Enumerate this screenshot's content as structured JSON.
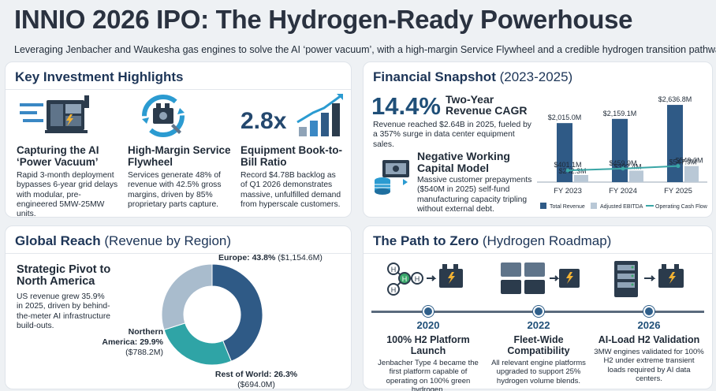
{
  "header": {
    "title": "INNIO 2026 IPO: The Hydrogen-Ready Powerhouse",
    "subtitle": "Leveraging Jenbacher and Waukesha gas engines to solve the AI ‘power vacuum’, with a high-margin Service Flywheel and a credible hydrogen transition pathway."
  },
  "highlights": {
    "title": "Key Investment Highlights",
    "items": [
      {
        "icon": "generator-icon",
        "heading": "Capturing the AI ‘Power Vacuum’",
        "body": "Rapid 3-month deployment bypasses 6-year grid delays with modular, pre-engineered 5MW-25MW units."
      },
      {
        "icon": "engine-cycle-icon",
        "heading": "High-Margin Service Flywheel",
        "body": "Services generate 48% of revenue with 42.5% gross margins, driven by 85% proprietary parts capture."
      },
      {
        "icon": "growth-bars-icon",
        "big": "2.8x",
        "heading": "Equipment Book-to-Bill Ratio",
        "body": "Record $4.78B backlog as of Q1 2026 demonstrates massive, unfulfilled demand from hyperscale customers."
      }
    ]
  },
  "financial": {
    "title": "Financial Snapshot",
    "title_suffix": "(2023-2025)",
    "cagr_value": "14.4%",
    "cagr_label": "Two-Year Revenue CAGR",
    "cagr_desc": "Revenue reached $2.64B in 2025, fueled by a 357% surge in data center equipment sales.",
    "nwc_heading": "Negative Working Capital Model",
    "nwc_body": "Massive customer prepayments ($540M in 2025) self-fund manufacturing capacity tripling without external debt."
  },
  "chart_data": {
    "type": "bar",
    "categories": [
      "FY 2023",
      "FY 2024",
      "FY 2025"
    ],
    "series": [
      {
        "name": "Total Revenue",
        "type": "bar",
        "values": [
          2015.0,
          2159.1,
          2636.8
        ],
        "labels": [
          "$2,015.0M",
          "$2,159.1M",
          "$2,636.8M"
        ],
        "color": "#2f5a86"
      },
      {
        "name": "Adjusted EBITDA",
        "type": "bar",
        "values": [
          242.3,
          392.4,
          547.9
        ],
        "labels": [
          "$242.3M",
          "$392.4M",
          "$547.9M"
        ],
        "color": "#b9c8d6"
      },
      {
        "name": "Operating Cash Flow",
        "type": "line",
        "values": [
          401.1,
          459.9,
          549.0
        ],
        "labels": [
          "$401.1M",
          "$459.9M",
          "$549.0M"
        ],
        "color": "#3aa6a6"
      }
    ],
    "ylim": [
      0,
      2800
    ],
    "legend": "bottom"
  },
  "global": {
    "title": "Global Reach",
    "title_suffix": "(Revenue by Region)",
    "pivot_heading": "Strategic Pivot to North America",
    "pivot_body": "US revenue grew 35.9% in 2025, driven by behind-the-meter AI infrastructure build-outs.",
    "regions": [
      {
        "name": "Europe",
        "pct": 43.8,
        "pct_label": "Europe: 43.8%",
        "value_label": "($1,154.6M)",
        "color": "#2f5a86"
      },
      {
        "name": "Rest of World",
        "pct": 26.3,
        "pct_label": "Rest of World: 26.3%",
        "value_label": "($694.0M)",
        "color": "#2fa4a6"
      },
      {
        "name": "Northern America",
        "pct": 29.9,
        "pct_label": "Northern America: 29.9%",
        "value_label": "($788.2M)",
        "color": "#a9bccd"
      }
    ]
  },
  "roadmap": {
    "title": "The Path to Zero",
    "title_suffix": "(Hydrogen Roadmap)",
    "milestones": [
      {
        "year": "2020",
        "heading": "100% H2 Platform Launch",
        "body": "Jenbacher Type 4 became the first platform capable of operating on 100% green hydrogen.",
        "icon": "h2-molecule-engine-icon"
      },
      {
        "year": "2022",
        "heading": "Fleet-Wide Compatibility",
        "body": "All relevant engine platforms upgraded to support 25% hydrogen volume blends.",
        "icon": "engine-fleet-icon"
      },
      {
        "year": "2026",
        "heading": "AI-Load H2 Validation",
        "body": "3MW engines validated for 100% H2 under extreme transient loads required by AI data centers.",
        "icon": "server-engine-icon"
      }
    ]
  }
}
